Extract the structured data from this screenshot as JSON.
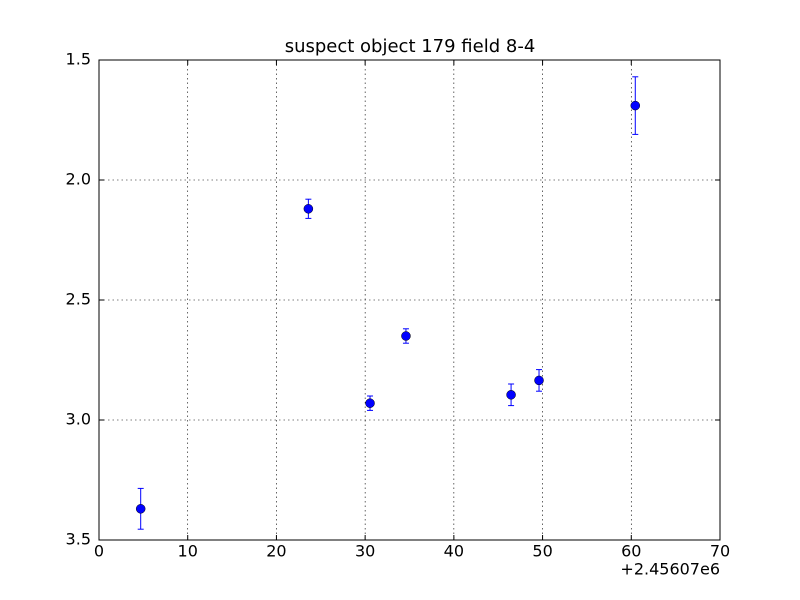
{
  "chart_data": {
    "type": "errorbar",
    "title": "suspect object 179 field 8-4",
    "x_offset_label": "+2.45607e6",
    "series": [
      {
        "color": "#0000ff",
        "x": [
          4.7,
          23.6,
          30.55,
          34.6,
          46.45,
          49.6,
          60.45
        ],
        "values": [
          3.37,
          2.12,
          2.93,
          2.65,
          2.895,
          2.835,
          1.69
        ],
        "errors": [
          0.085,
          0.04,
          0.03,
          0.03,
          0.045,
          0.045,
          0.12
        ]
      }
    ],
    "xlim": [
      0,
      70
    ],
    "xticks": [
      0,
      10,
      20,
      30,
      40,
      50,
      60,
      70
    ],
    "ylim": [
      3.5,
      1.5
    ],
    "yticks": [
      1.5,
      {
        "value": 2,
        "label": "2.0"
      },
      2.5,
      {
        "value": 3,
        "label": "3.0"
      },
      3.5
    ],
    "grid": true
  }
}
